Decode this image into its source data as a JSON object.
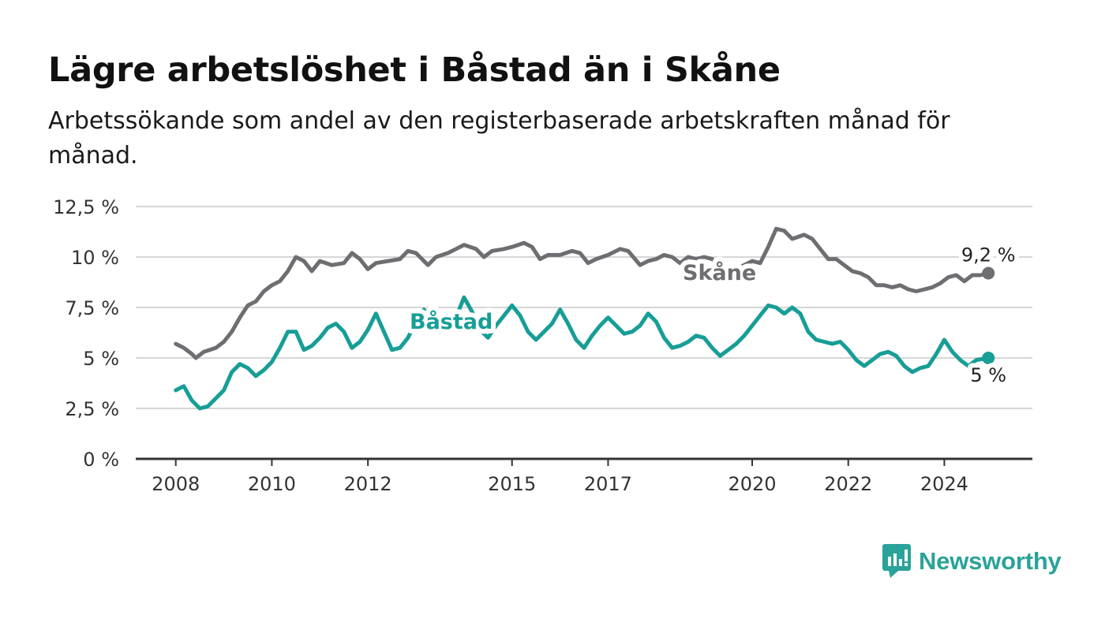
{
  "header": {
    "title": "Lägre arbetslöshet i Båstad än i Skåne",
    "subtitle": "Arbetssökande som andel av den registerbaserade arbetskraften månad för månad."
  },
  "brand": {
    "name": "Newsworthy",
    "color": "#2aa39a"
  },
  "chart_data": {
    "type": "line",
    "title": "Lägre arbetslöshet i Båstad än i Skåne",
    "subtitle": "Arbetssökande som andel av den registerbaserade arbetskraften månad för månad.",
    "xlabel": "",
    "ylabel": "",
    "ylim": [
      0,
      12.5
    ],
    "xlim": [
      "2007-03",
      "2025-11"
    ],
    "grid": true,
    "legend": "inline labels",
    "y_ticks": [
      {
        "value": 0,
        "label": "0 %"
      },
      {
        "value": 2.5,
        "label": "2,5 %"
      },
      {
        "value": 5,
        "label": "5 %"
      },
      {
        "value": 7.5,
        "label": "7,5 %"
      },
      {
        "value": 10,
        "label": "10 %"
      },
      {
        "value": 12.5,
        "label": "12,5 %"
      }
    ],
    "x_ticks": [
      {
        "value": "2008-01",
        "label": "2008"
      },
      {
        "value": "2010-01",
        "label": "2010"
      },
      {
        "value": "2012-01",
        "label": "2012"
      },
      {
        "value": "2015-01",
        "label": "2015"
      },
      {
        "value": "2017-01",
        "label": "2017"
      },
      {
        "value": "2020-01",
        "label": "2020"
      },
      {
        "value": "2022-01",
        "label": "2022"
      },
      {
        "value": "2024-01",
        "label": "2024"
      }
    ],
    "series": [
      {
        "name": "Skåne",
        "color": "#6e6e72",
        "end_label": "9,2 %",
        "points": [
          [
            "2008-01",
            5.7
          ],
          [
            "2008-03",
            5.5
          ],
          [
            "2008-05",
            5.2
          ],
          [
            "2008-06",
            5.0
          ],
          [
            "2008-08",
            5.3
          ],
          [
            "2008-11",
            5.5
          ],
          [
            "2009-01",
            5.8
          ],
          [
            "2009-03",
            6.3
          ],
          [
            "2009-05",
            7.0
          ],
          [
            "2009-07",
            7.6
          ],
          [
            "2009-09",
            7.8
          ],
          [
            "2009-11",
            8.3
          ],
          [
            "2010-01",
            8.6
          ],
          [
            "2010-03",
            8.8
          ],
          [
            "2010-05",
            9.3
          ],
          [
            "2010-07",
            10.0
          ],
          [
            "2010-09",
            9.8
          ],
          [
            "2010-11",
            9.3
          ],
          [
            "2011-01",
            9.8
          ],
          [
            "2011-04",
            9.6
          ],
          [
            "2011-07",
            9.7
          ],
          [
            "2011-09",
            10.2
          ],
          [
            "2011-11",
            9.9
          ],
          [
            "2012-01",
            9.4
          ],
          [
            "2012-03",
            9.7
          ],
          [
            "2012-06",
            9.8
          ],
          [
            "2012-09",
            9.9
          ],
          [
            "2012-11",
            10.3
          ],
          [
            "2013-01",
            10.2
          ],
          [
            "2013-04",
            9.6
          ],
          [
            "2013-06",
            10.0
          ],
          [
            "2013-09",
            10.2
          ],
          [
            "2013-11",
            10.4
          ],
          [
            "2014-01",
            10.6
          ],
          [
            "2014-04",
            10.4
          ],
          [
            "2014-06",
            10.0
          ],
          [
            "2014-08",
            10.3
          ],
          [
            "2014-11",
            10.4
          ],
          [
            "2015-01",
            10.5
          ],
          [
            "2015-04",
            10.7
          ],
          [
            "2015-06",
            10.5
          ],
          [
            "2015-08",
            9.9
          ],
          [
            "2015-10",
            10.1
          ],
          [
            "2016-01",
            10.1
          ],
          [
            "2016-04",
            10.3
          ],
          [
            "2016-06",
            10.2
          ],
          [
            "2016-08",
            9.7
          ],
          [
            "2016-10",
            9.9
          ],
          [
            "2017-01",
            10.1
          ],
          [
            "2017-04",
            10.4
          ],
          [
            "2017-06",
            10.3
          ],
          [
            "2017-09",
            9.6
          ],
          [
            "2017-11",
            9.8
          ],
          [
            "2018-01",
            9.9
          ],
          [
            "2018-03",
            10.1
          ],
          [
            "2018-05",
            10.0
          ],
          [
            "2018-07",
            9.7
          ],
          [
            "2018-09",
            10.0
          ],
          [
            "2018-11",
            9.9
          ],
          [
            "2019-01",
            10.0
          ],
          [
            "2019-03",
            9.9
          ],
          [
            "2019-05",
            9.5
          ],
          [
            "2019-07",
            9.2
          ],
          [
            "2019-09",
            9.4
          ],
          [
            "2019-11",
            9.6
          ],
          [
            "2020-01",
            9.8
          ],
          [
            "2020-03",
            9.7
          ],
          [
            "2020-05",
            10.5
          ],
          [
            "2020-07",
            11.4
          ],
          [
            "2020-09",
            11.3
          ],
          [
            "2020-11",
            10.9
          ],
          [
            "2021-02",
            11.1
          ],
          [
            "2021-04",
            10.9
          ],
          [
            "2021-06",
            10.4
          ],
          [
            "2021-08",
            9.9
          ],
          [
            "2021-10",
            9.9
          ],
          [
            "2021-12",
            9.6
          ],
          [
            "2022-02",
            9.3
          ],
          [
            "2022-04",
            9.2
          ],
          [
            "2022-06",
            9.0
          ],
          [
            "2022-08",
            8.6
          ],
          [
            "2022-10",
            8.6
          ],
          [
            "2022-12",
            8.5
          ],
          [
            "2023-02",
            8.6
          ],
          [
            "2023-04",
            8.4
          ],
          [
            "2023-06",
            8.3
          ],
          [
            "2023-08",
            8.4
          ],
          [
            "2023-10",
            8.5
          ],
          [
            "2023-12",
            8.7
          ],
          [
            "2024-02",
            9.0
          ],
          [
            "2024-04",
            9.1
          ],
          [
            "2024-06",
            8.8
          ],
          [
            "2024-08",
            9.1
          ],
          [
            "2024-10",
            9.1
          ],
          [
            "2024-12",
            9.2
          ]
        ]
      },
      {
        "name": "Båstad",
        "color": "#179e96",
        "end_label": "5 %",
        "points": [
          [
            "2008-01",
            3.4
          ],
          [
            "2008-03",
            3.6
          ],
          [
            "2008-05",
            2.9
          ],
          [
            "2008-07",
            2.5
          ],
          [
            "2008-09",
            2.6
          ],
          [
            "2008-11",
            3.0
          ],
          [
            "2009-01",
            3.4
          ],
          [
            "2009-03",
            4.3
          ],
          [
            "2009-05",
            4.7
          ],
          [
            "2009-07",
            4.5
          ],
          [
            "2009-09",
            4.1
          ],
          [
            "2009-11",
            4.4
          ],
          [
            "2010-01",
            4.8
          ],
          [
            "2010-03",
            5.5
          ],
          [
            "2010-05",
            6.3
          ],
          [
            "2010-07",
            6.3
          ],
          [
            "2010-09",
            5.4
          ],
          [
            "2010-11",
            5.6
          ],
          [
            "2011-01",
            6.0
          ],
          [
            "2011-03",
            6.5
          ],
          [
            "2011-05",
            6.7
          ],
          [
            "2011-07",
            6.3
          ],
          [
            "2011-09",
            5.5
          ],
          [
            "2011-11",
            5.8
          ],
          [
            "2012-01",
            6.4
          ],
          [
            "2012-03",
            7.2
          ],
          [
            "2012-05",
            6.3
          ],
          [
            "2012-07",
            5.4
          ],
          [
            "2012-09",
            5.5
          ],
          [
            "2012-11",
            6.0
          ],
          [
            "2013-01",
            6.8
          ],
          [
            "2013-03",
            7.4
          ],
          [
            "2013-05",
            7.0
          ],
          [
            "2013-07",
            6.3
          ],
          [
            "2013-09",
            6.4
          ],
          [
            "2013-11",
            7.0
          ],
          [
            "2014-01",
            8.0
          ],
          [
            "2014-03",
            7.3
          ],
          [
            "2014-05",
            6.4
          ],
          [
            "2014-07",
            6.0
          ],
          [
            "2014-09",
            6.6
          ],
          [
            "2014-11",
            7.1
          ],
          [
            "2015-01",
            7.6
          ],
          [
            "2015-03",
            7.1
          ],
          [
            "2015-05",
            6.3
          ],
          [
            "2015-07",
            5.9
          ],
          [
            "2015-09",
            6.3
          ],
          [
            "2015-11",
            6.7
          ],
          [
            "2016-01",
            7.4
          ],
          [
            "2016-03",
            6.7
          ],
          [
            "2016-05",
            5.9
          ],
          [
            "2016-07",
            5.5
          ],
          [
            "2016-09",
            6.1
          ],
          [
            "2016-11",
            6.6
          ],
          [
            "2017-01",
            7.0
          ],
          [
            "2017-03",
            6.6
          ],
          [
            "2017-05",
            6.2
          ],
          [
            "2017-07",
            6.3
          ],
          [
            "2017-09",
            6.6
          ],
          [
            "2017-11",
            7.2
          ],
          [
            "2018-01",
            6.8
          ],
          [
            "2018-03",
            6.0
          ],
          [
            "2018-05",
            5.5
          ],
          [
            "2018-07",
            5.6
          ],
          [
            "2018-09",
            5.8
          ],
          [
            "2018-11",
            6.1
          ],
          [
            "2019-01",
            6.0
          ],
          [
            "2019-03",
            5.5
          ],
          [
            "2019-05",
            5.1
          ],
          [
            "2019-07",
            5.4
          ],
          [
            "2019-09",
            5.7
          ],
          [
            "2019-11",
            6.1
          ],
          [
            "2020-01",
            6.6
          ],
          [
            "2020-03",
            7.1
          ],
          [
            "2020-05",
            7.6
          ],
          [
            "2020-07",
            7.5
          ],
          [
            "2020-09",
            7.2
          ],
          [
            "2020-11",
            7.5
          ],
          [
            "2021-01",
            7.2
          ],
          [
            "2021-03",
            6.3
          ],
          [
            "2021-05",
            5.9
          ],
          [
            "2021-07",
            5.8
          ],
          [
            "2021-09",
            5.7
          ],
          [
            "2021-11",
            5.8
          ],
          [
            "2022-01",
            5.4
          ],
          [
            "2022-03",
            4.9
          ],
          [
            "2022-05",
            4.6
          ],
          [
            "2022-07",
            4.9
          ],
          [
            "2022-09",
            5.2
          ],
          [
            "2022-11",
            5.3
          ],
          [
            "2023-01",
            5.1
          ],
          [
            "2023-03",
            4.6
          ],
          [
            "2023-05",
            4.3
          ],
          [
            "2023-07",
            4.5
          ],
          [
            "2023-09",
            4.6
          ],
          [
            "2023-11",
            5.2
          ],
          [
            "2024-01",
            5.9
          ],
          [
            "2024-03",
            5.3
          ],
          [
            "2024-05",
            4.9
          ],
          [
            "2024-07",
            4.6
          ],
          [
            "2024-09",
            4.9
          ],
          [
            "2024-12",
            5.0
          ]
        ]
      }
    ]
  }
}
